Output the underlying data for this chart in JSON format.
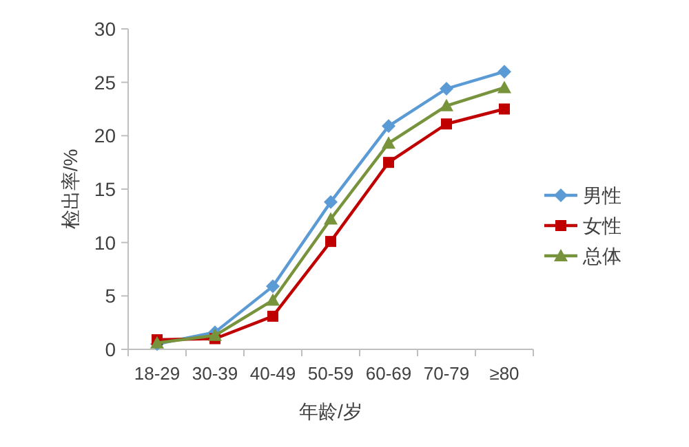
{
  "chart_data": {
    "type": "line",
    "xlabel": "年龄/岁",
    "ylabel": "检出率/%",
    "categories": [
      "18-29",
      "30-39",
      "40-49",
      "50-59",
      "60-69",
      "70-79",
      "≥80"
    ],
    "series": [
      {
        "name": "男性",
        "color": "#5b9bd5",
        "marker": "diamond",
        "values": [
          0.5,
          1.6,
          5.9,
          13.8,
          20.9,
          24.4,
          26.0
        ]
      },
      {
        "name": "女性",
        "color": "#c00000",
        "marker": "square",
        "values": [
          0.9,
          1.0,
          3.1,
          10.1,
          17.5,
          21.1,
          22.5
        ]
      },
      {
        "name": "总体",
        "color": "#77933c",
        "marker": "triangle",
        "values": [
          0.6,
          1.3,
          4.6,
          12.2,
          19.3,
          22.8,
          24.5
        ]
      }
    ],
    "ylim": [
      0,
      30
    ],
    "yticks": [
      0,
      5,
      10,
      15,
      20,
      25,
      30
    ],
    "grid": false,
    "legend": "right"
  }
}
